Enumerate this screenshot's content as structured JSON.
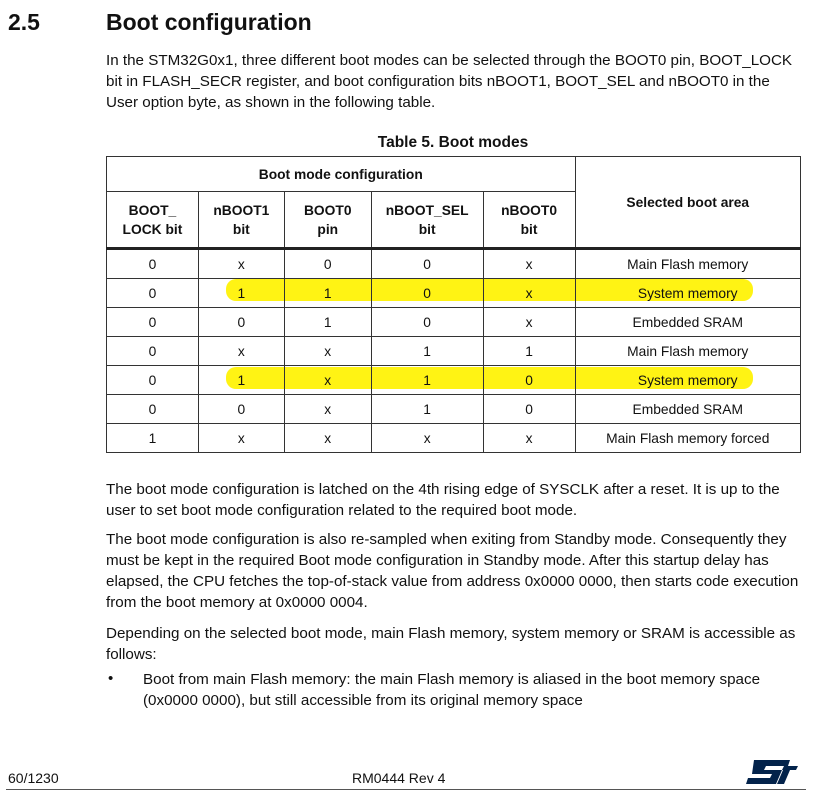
{
  "section": {
    "number": "2.5",
    "title": "Boot configuration"
  },
  "intro": "In the STM32G0x1, three different boot modes can be selected through the BOOT0 pin, BOOT_LOCK bit in FLASH_SECR register, and boot configuration bits nBOOT1, BOOT_SEL and nBOOT0 in the User option byte, as shown in the following table.",
  "table": {
    "caption": "Table 5. Boot modes",
    "group_header": "Boot mode configuration",
    "selected_header": "Selected boot area",
    "columns": [
      [
        "BOOT_",
        "LOCK bit"
      ],
      [
        "nBOOT1",
        "bit"
      ],
      [
        "BOOT0",
        "pin"
      ],
      [
        "nBOOT_SEL",
        "bit"
      ],
      [
        "nBOOT0",
        "bit"
      ]
    ],
    "rows": [
      {
        "cells": [
          "0",
          "x",
          "0",
          "0",
          "x"
        ],
        "area": "Main Flash memory"
      },
      {
        "cells": [
          "0",
          "1",
          "1",
          "0",
          "x"
        ],
        "area": "System memory"
      },
      {
        "cells": [
          "0",
          "0",
          "1",
          "0",
          "x"
        ],
        "area": "Embedded SRAM"
      },
      {
        "cells": [
          "0",
          "x",
          "x",
          "1",
          "1"
        ],
        "area": "Main Flash memory"
      },
      {
        "cells": [
          "0",
          "1",
          "x",
          "1",
          "0"
        ],
        "area": "System memory"
      },
      {
        "cells": [
          "0",
          "0",
          "x",
          "1",
          "0"
        ],
        "area": "Embedded SRAM"
      },
      {
        "cells": [
          "1",
          "x",
          "x",
          "x",
          "x"
        ],
        "area": "Main Flash memory forced"
      }
    ],
    "highlight_color": "#fff200"
  },
  "paragraphs": [
    "The boot mode configuration is latched on the 4th rising edge of SYSCLK after a reset. It is up to the user to set boot mode configuration related to the required boot mode.",
    "The boot mode configuration is also re-sampled when exiting from Standby mode. Consequently they must be kept in the required Boot mode configuration in Standby mode. After this startup delay has elapsed, the CPU fetches the top-of-stack value from address 0x0000 0000, then starts code execution from the boot memory at 0x0000 0004.",
    "Depending on the selected boot mode, main Flash memory, system memory or SRAM is accessible as follows:"
  ],
  "bullets": [
    "Boot from main Flash memory: the main Flash memory is aliased in the boot memory space (0x0000 0000), but still accessible from its original memory space"
  ],
  "footer": {
    "page": "60/1230",
    "doc": "RM0444 Rev 4",
    "logo_icon": "st-logo-icon",
    "logo_color": "#03234b"
  }
}
